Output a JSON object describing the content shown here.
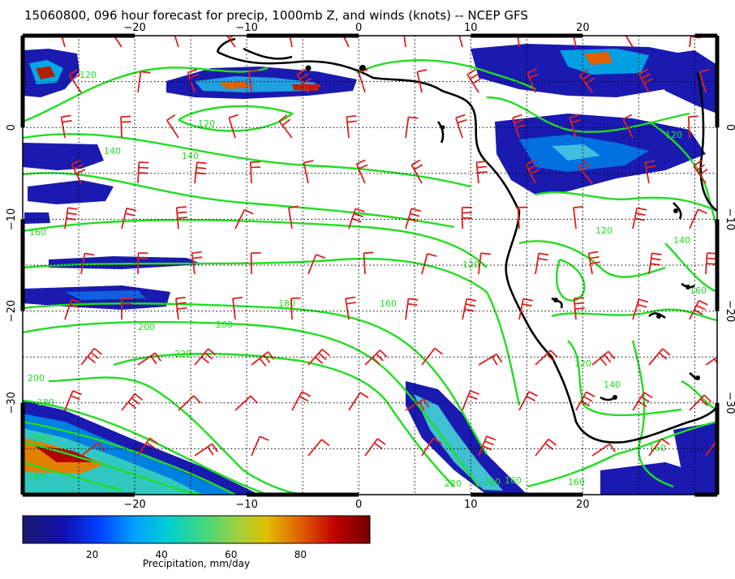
{
  "title": "15060800, 096 hour forecast for precip, 1000mb Z, and winds (knots) -- NCEP GFS",
  "map": {
    "lon_range": [
      -30,
      32
    ],
    "lat_range": [
      -40,
      10
    ],
    "lon_ticks": [
      -20,
      -10,
      0,
      10,
      20
    ],
    "lon_tick_labels": [
      "−20",
      "−10",
      "0",
      "10",
      "20"
    ],
    "lat_ticks": [
      0,
      -10,
      -20,
      -30
    ],
    "lat_tick_labels": [
      "0",
      "−10",
      "−20",
      "−30"
    ],
    "gridline_style": "dotted",
    "coastline_color": "#000000",
    "contour_color": "#22dd22",
    "wind_barb_color": "#e02020"
  },
  "contours": {
    "labels": [
      "120",
      "120",
      "140",
      "160",
      "180",
      "200",
      "220",
      "200",
      "200",
      "160",
      "120",
      "120",
      "140",
      "160",
      "120",
      "140",
      "160",
      "180",
      "200",
      "220",
      "180",
      "200",
      "160",
      "160",
      "120",
      "140"
    ]
  },
  "colorbar": {
    "tick_labels": [
      "20",
      "40",
      "60",
      "80"
    ],
    "tick_values": [
      20,
      40,
      60,
      80
    ],
    "range": [
      0,
      100
    ],
    "label": "Precipitation, mm/day",
    "colors": [
      "#1a1a8c",
      "#0000ff",
      "#0080ff",
      "#00c8c8",
      "#40d080",
      "#a0d040",
      "#e0c000",
      "#e06000",
      "#c00000",
      "#800000"
    ]
  }
}
